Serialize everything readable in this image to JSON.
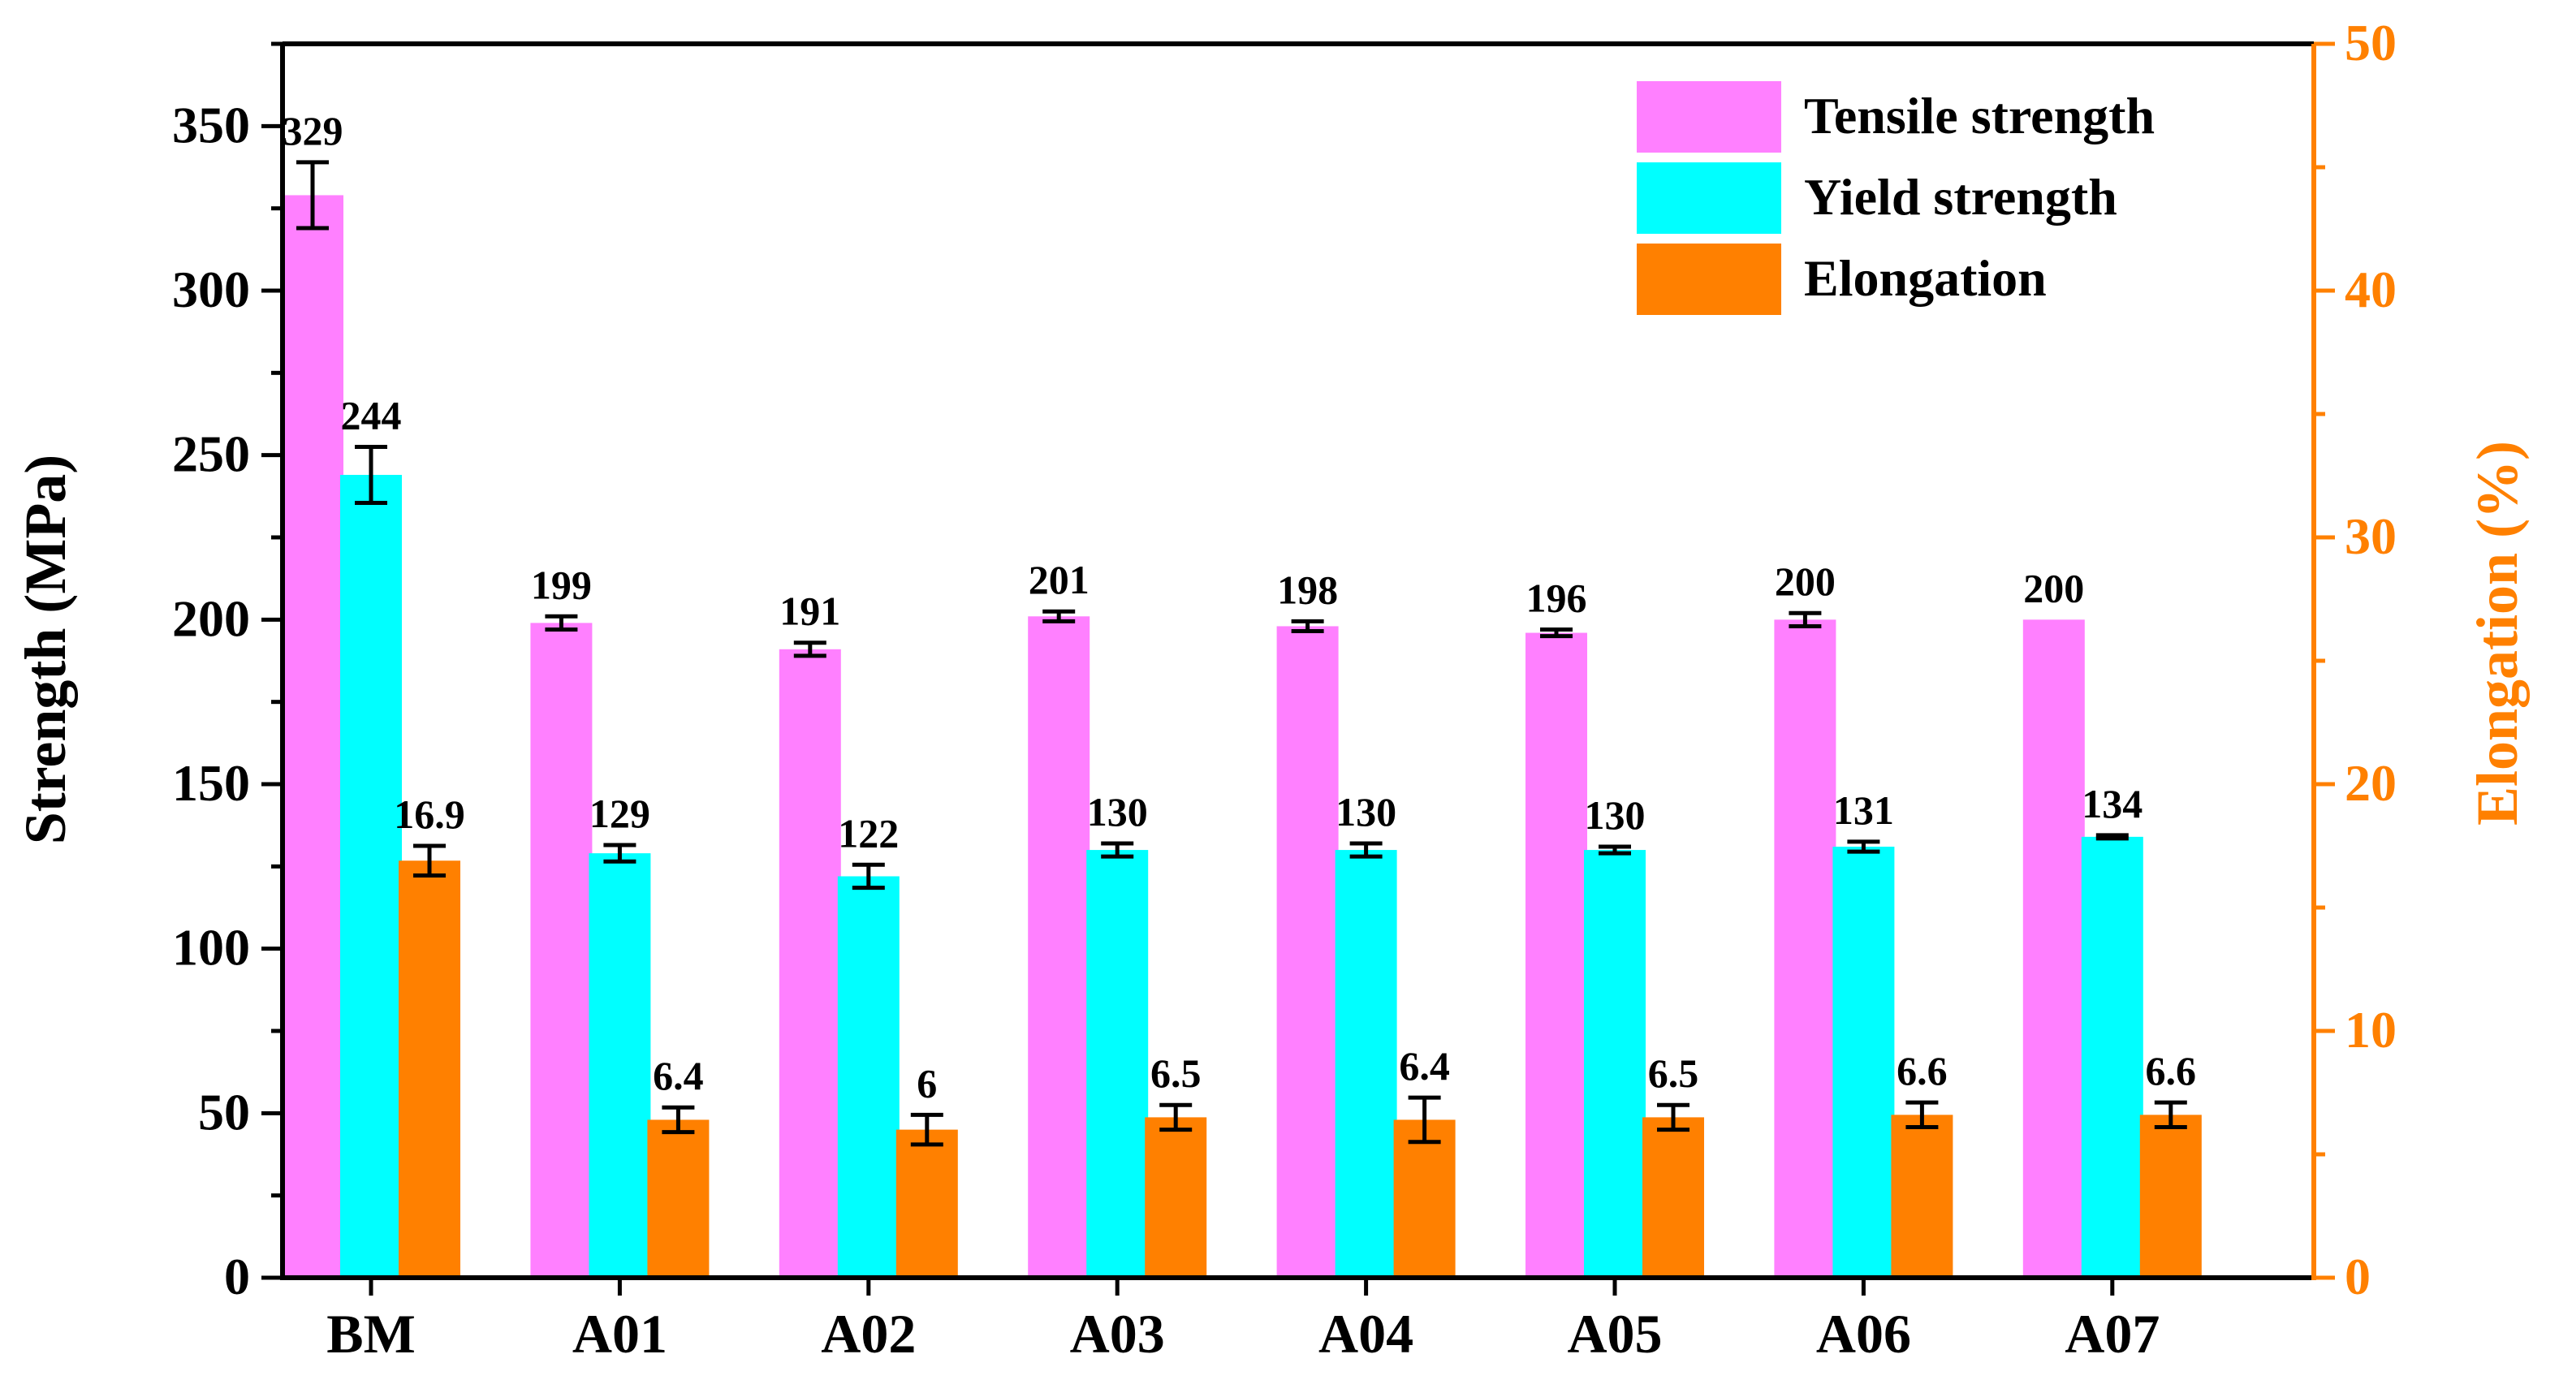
{
  "chart_data": {
    "type": "bar",
    "categories": [
      "BM",
      "A01",
      "A02",
      "A03",
      "A04",
      "A05",
      "A06",
      "A07"
    ],
    "left_axis": {
      "label": "Strength (MPa)",
      "ylim": [
        0,
        375
      ],
      "ticks": [
        0,
        50,
        100,
        150,
        200,
        250,
        300,
        350
      ]
    },
    "right_axis": {
      "label": "Elongation (%)",
      "ylim": [
        0,
        50
      ],
      "ticks": [
        0,
        10,
        20,
        30,
        40,
        50
      ]
    },
    "series": [
      {
        "name": "Tensile strength",
        "axis": "left",
        "color": "#FF80FF",
        "values": [
          329,
          199,
          191,
          201,
          198,
          196,
          200,
          200
        ],
        "errors": [
          10,
          2,
          2,
          1.5,
          1.5,
          1,
          2,
          0
        ],
        "labels": [
          "329",
          "199",
          "191",
          "201",
          "198",
          "196",
          "200",
          "200"
        ]
      },
      {
        "name": "Yield strength",
        "axis": "left",
        "color": "#00FFFF",
        "values": [
          244,
          129,
          122,
          130,
          130,
          130,
          131,
          134
        ],
        "errors": [
          8.5,
          2.5,
          3.5,
          2,
          2,
          1,
          1.5,
          0.5
        ],
        "labels": [
          "244",
          "129",
          "122",
          "130",
          "130",
          "130",
          "131",
          "134"
        ]
      },
      {
        "name": "Elongation",
        "axis": "right",
        "color": "#FF8000",
        "values": [
          16.9,
          6.4,
          6.0,
          6.5,
          6.4,
          6.5,
          6.6,
          6.6
        ],
        "errors": [
          0.6,
          0.5,
          0.6,
          0.5,
          0.9,
          0.5,
          0.5,
          0.5
        ],
        "labels": [
          "16.9",
          "6.4",
          "6",
          "6.5",
          "6.4",
          "6.5",
          "6.6",
          "6.6"
        ]
      }
    ],
    "legend": {
      "placement": "top-right",
      "entries": [
        "Tensile strength",
        "Yield strength",
        "Elongation"
      ]
    },
    "accent_color": "#FF8000",
    "axis_color": "#000000"
  }
}
